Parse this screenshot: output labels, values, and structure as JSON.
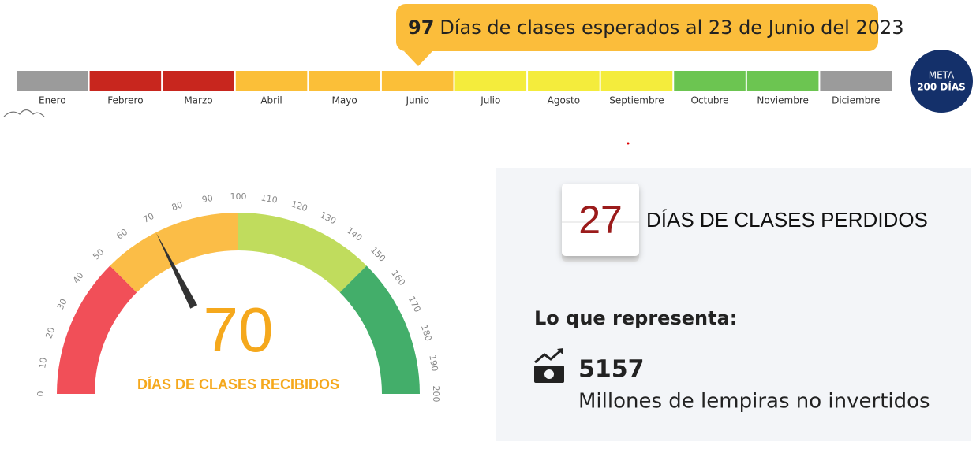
{
  "callout": {
    "value": 97,
    "text": "Días de clases esperados al 23 de Junio del 2023"
  },
  "timeline": {
    "months": [
      {
        "label": "Enero",
        "color": "#9b9b9b"
      },
      {
        "label": "Febrero",
        "color": "#c8261e"
      },
      {
        "label": "Marzo",
        "color": "#c8261e"
      },
      {
        "label": "Abril",
        "color": "#fbbf38"
      },
      {
        "label": "Mayo",
        "color": "#fbbf38"
      },
      {
        "label": "Junio",
        "color": "#fbbf38"
      },
      {
        "label": "Julio",
        "color": "#f4ec3c"
      },
      {
        "label": "Agosto",
        "color": "#f4ec3c"
      },
      {
        "label": "Septiembre",
        "color": "#f4ec3c"
      },
      {
        "label": "Octubre",
        "color": "#6cc551"
      },
      {
        "label": "Noviembre",
        "color": "#6cc551"
      },
      {
        "label": "Diciembre",
        "color": "#9b9b9b"
      }
    ]
  },
  "goal": {
    "label": "META",
    "value": "200 DÍAS"
  },
  "gauge": {
    "value": 70,
    "label": "DÍAS DE CLASES RECIBIDOS",
    "range": [
      0,
      200
    ],
    "ticks": [
      0,
      10,
      20,
      30,
      40,
      50,
      60,
      70,
      80,
      90,
      100,
      110,
      120,
      130,
      140,
      150,
      160,
      170,
      180,
      190,
      200
    ],
    "bands": [
      {
        "from": 0,
        "to": 50,
        "color": "#f14f58"
      },
      {
        "from": 50,
        "to": 100,
        "color": "#fbbd47"
      },
      {
        "from": 100,
        "to": 150,
        "color": "#c0dc5d"
      },
      {
        "from": 150,
        "to": 200,
        "color": "#43ae6a"
      }
    ]
  },
  "lost": {
    "value": 27,
    "label": "DÍAS DE CLASES PERDIDOS"
  },
  "represents": {
    "title": "Lo que representa:",
    "value": 5157,
    "label": "Millones de lempiras no invertidos"
  }
}
